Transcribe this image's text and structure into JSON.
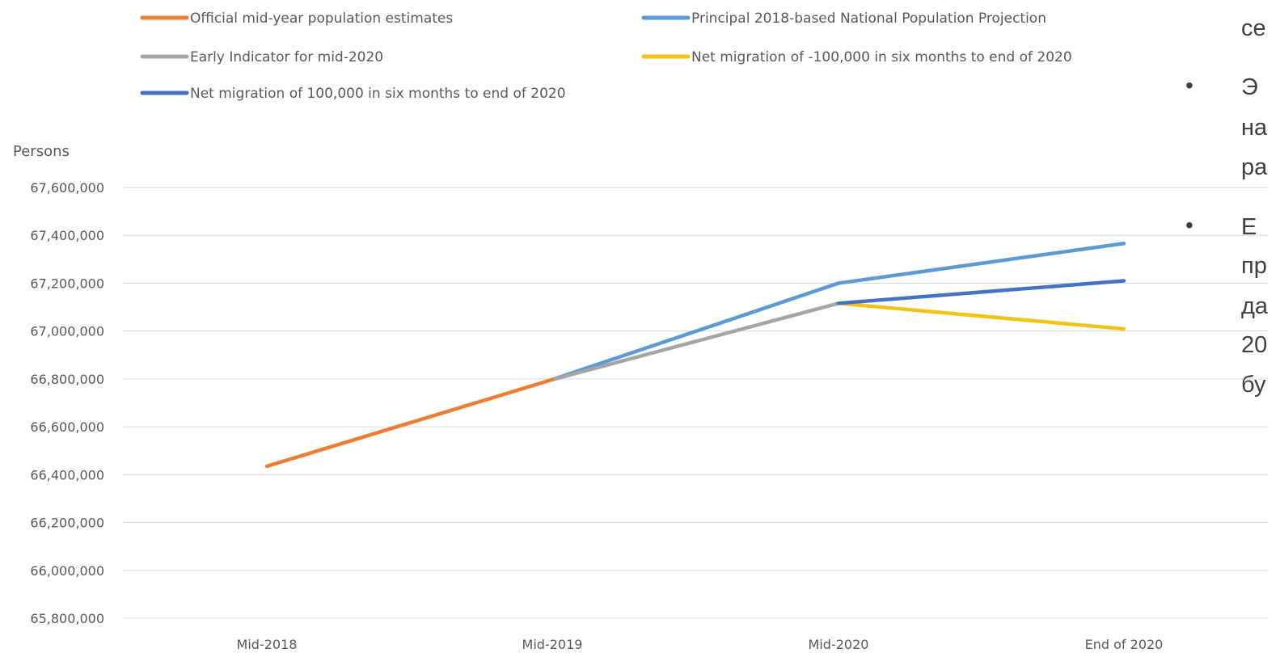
{
  "chart_data": {
    "type": "line",
    "ylabel": "Persons",
    "categories": [
      "Mid-2018",
      "Mid-2019",
      "Mid-2020",
      "End of 2020"
    ],
    "ylim": [
      65800000,
      67600000
    ],
    "yticks": [
      {
        "value": 67600000,
        "label": "67,600,000"
      },
      {
        "value": 67400000,
        "label": "67,400,000"
      },
      {
        "value": 67200000,
        "label": "67,200,000"
      },
      {
        "value": 67000000,
        "label": "67,000,000"
      },
      {
        "value": 66800000,
        "label": "66,800,000"
      },
      {
        "value": 66600000,
        "label": "66,600,000"
      },
      {
        "value": 66400000,
        "label": "66,400,000"
      },
      {
        "value": 66200000,
        "label": "66,200,000"
      },
      {
        "value": 66000000,
        "label": "66,000,000"
      },
      {
        "value": 65800000,
        "label": "65,800,000"
      }
    ],
    "grid": true,
    "legend_position": "top",
    "series": [
      {
        "name": "Official mid-year population estimates",
        "color": "#ED7D31",
        "points": [
          {
            "x": "Mid-2018",
            "y": 66435000
          },
          {
            "x": "Mid-2019",
            "y": 66797000
          }
        ]
      },
      {
        "name": "Principal 2018-based National Population Projection",
        "color": "#5B9BD5",
        "points": [
          {
            "x": "Mid-2019",
            "y": 66797000
          },
          {
            "x": "Mid-2020",
            "y": 67200000
          },
          {
            "x": "End of 2020",
            "y": 67366000
          }
        ]
      },
      {
        "name": "Early Indicator for mid-2020",
        "color": "#A5A5A5",
        "points": [
          {
            "x": "Mid-2019",
            "y": 66797000
          },
          {
            "x": "Mid-2020",
            "y": 67116000
          }
        ]
      },
      {
        "name": "Net migration of -100,000 in six months to end of 2020",
        "color": "#F2C314",
        "points": [
          {
            "x": "Mid-2020",
            "y": 67116000
          },
          {
            "x": "End of 2020",
            "y": 67009000
          }
        ]
      },
      {
        "name": "Net migration of 100,000 in six months to end of 2020",
        "color": "#4472C4",
        "points": [
          {
            "x": "Mid-2020",
            "y": 67116000
          },
          {
            "x": "End of 2020",
            "y": 67210000
          }
        ]
      }
    ],
    "legend_order": [
      0,
      1,
      2,
      3,
      4
    ]
  },
  "side_panel": {
    "lines": [
      "се",
      "Э",
      "на",
      "ра",
      "Е",
      "пр",
      "да",
      "20",
      "бу"
    ],
    "bullets": [
      "•",
      "•"
    ]
  }
}
